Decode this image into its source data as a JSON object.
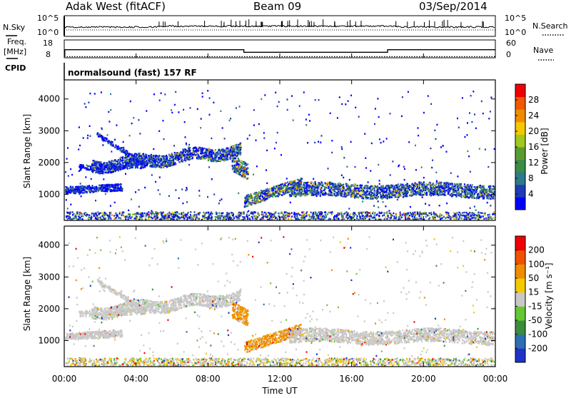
{
  "header": {
    "station_title": "Adak West (fitACF)",
    "beam_title": "Beam 09",
    "date_title": "03/Sep/2014"
  },
  "status_panels": {
    "nsky_label": "N.Sky",
    "nsearch_label": "N.Search",
    "nsky_ticks": [
      "10^5",
      "10^0"
    ],
    "nsearch_ticks": [
      "10^5",
      "10^0"
    ],
    "freq_label_top": "Freq.",
    "freq_label_unit": "[MHz]",
    "freq_ticks": [
      "18",
      "8"
    ],
    "nave_label": "Nave",
    "nave_ticks": [
      "60",
      "0"
    ],
    "cpid_label": "CPID",
    "cpid_text": "normalsound (fast) 157 RF",
    "freq_series": {
      "x_hours": [
        0.0,
        0.03,
        0.03,
        10.0,
        10.0,
        18.0,
        18.0,
        24.0
      ],
      "y_mhz": [
        8.0,
        8.0,
        12.6,
        12.6,
        10.6,
        10.6,
        12.6,
        12.6
      ]
    },
    "nave_level": 2
  },
  "chart_data": [
    {
      "type": "heatmap",
      "name": "power",
      "ylabel": "Slant Range [km]",
      "xlabel": "",
      "ylim": [
        180,
        4600
      ],
      "xlim_hours": [
        0,
        24
      ],
      "y_ticks": [
        "1000",
        "2000",
        "3000",
        "4000"
      ],
      "y_tick_values": [
        1000,
        2000,
        3000,
        4000
      ],
      "colorbar": {
        "label": "Power [dB]",
        "range": [
          0,
          32
        ],
        "ticks": [
          "4",
          "8",
          "12",
          "16",
          "20",
          "24",
          "28"
        ],
        "tick_values": [
          4,
          8,
          12,
          16,
          20,
          24,
          28
        ],
        "colors": [
          "#0000ff",
          "#1e3cb4",
          "#2d7a8a",
          "#3c8c46",
          "#5a9c32",
          "#a0c81e",
          "#f5c800",
          "#f08c00",
          "#f05a00",
          "#f00000"
        ]
      }
    },
    {
      "type": "heatmap",
      "name": "velocity",
      "ylabel": "Slant Range [km]",
      "xlabel": "Time UT",
      "ylim": [
        180,
        4600
      ],
      "xlim_hours": [
        0,
        24
      ],
      "y_ticks": [
        "1000",
        "2000",
        "3000",
        "4000"
      ],
      "y_tick_values": [
        1000,
        2000,
        3000,
        4000
      ],
      "x_ticks": [
        "00:00",
        "04:00",
        "08:00",
        "12:00",
        "16:00",
        "20:00",
        "00:00"
      ],
      "x_tick_values": [
        0,
        4,
        8,
        12,
        16,
        20,
        24
      ],
      "colorbar": {
        "label": "Velocity [m s⁻¹]",
        "ticks": [
          "200",
          "100",
          "50",
          "15",
          "-15",
          "-50",
          "-100",
          "-200"
        ],
        "colors": [
          "#1e32c8",
          "#2d6eb4",
          "#3c8c3c",
          "#64c832",
          "#c8c8c8",
          "#f5c800",
          "#f08c00",
          "#f05000",
          "#f00000"
        ]
      }
    }
  ]
}
